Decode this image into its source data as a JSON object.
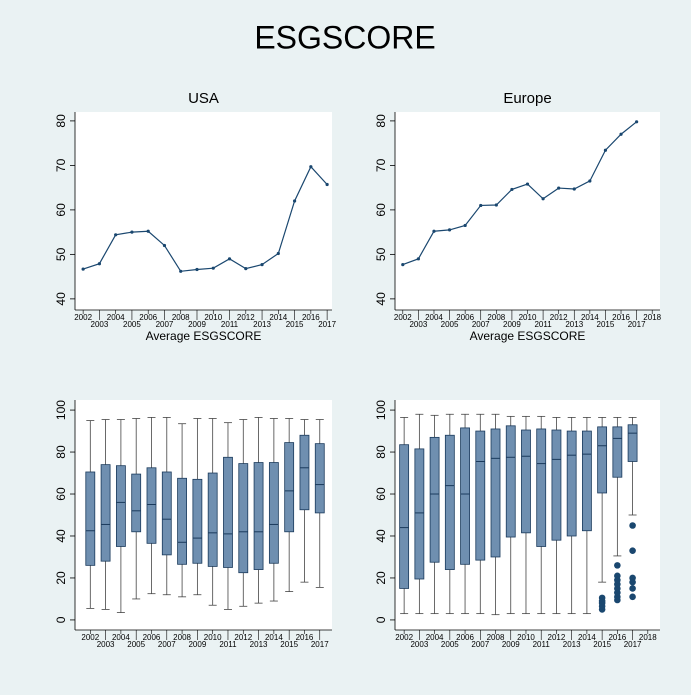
{
  "title": "ESGSCORE",
  "chart_data": [
    {
      "type": "line",
      "title": "USA",
      "xlabel": "Average ESGSCORE",
      "color": "#1a476f",
      "x": [
        2002,
        2003,
        2004,
        2005,
        2006,
        2007,
        2008,
        2009,
        2010,
        2011,
        2012,
        2013,
        2014,
        2015,
        2016,
        2017
      ],
      "values": [
        46.7,
        47.9,
        54.4,
        55.0,
        55.2,
        52.0,
        46.2,
        46.6,
        46.9,
        49.0,
        46.8,
        47.7,
        50.2,
        62.0,
        69.7,
        65.7
      ],
      "xlim": [
        2001.5,
        2017.3
      ],
      "ylim": [
        37.5,
        82
      ],
      "xticks": [
        2002,
        2003,
        2004,
        2005,
        2006,
        2007,
        2008,
        2009,
        2010,
        2011,
        2012,
        2013,
        2014,
        2015,
        2016,
        2017
      ],
      "yticks": [
        40,
        50,
        60,
        70,
        80
      ]
    },
    {
      "type": "line",
      "title": "Europe",
      "xlabel": "Average ESGSCORE",
      "color": "#1a476f",
      "x": [
        2002,
        2003,
        2004,
        2005,
        2006,
        2007,
        2008,
        2009,
        2010,
        2011,
        2012,
        2013,
        2014,
        2015,
        2016,
        2017
      ],
      "values": [
        47.7,
        49.0,
        55.2,
        55.5,
        56.5,
        61.0,
        61.1,
        64.6,
        65.8,
        62.5,
        64.9,
        64.7,
        66.5,
        73.4,
        77.0,
        79.8
      ],
      "xlim": [
        2001.5,
        2018.5
      ],
      "ylim": [
        37.5,
        82
      ],
      "xticks": [
        2002,
        2003,
        2004,
        2005,
        2006,
        2007,
        2008,
        2009,
        2010,
        2011,
        2012,
        2013,
        2014,
        2015,
        2016,
        2017,
        2018
      ],
      "yticks": [
        40,
        50,
        60,
        70,
        80
      ]
    },
    {
      "type": "box",
      "color": "#6f8fb0",
      "x": [
        2002,
        2003,
        2004,
        2005,
        2006,
        2007,
        2008,
        2009,
        2010,
        2011,
        2012,
        2013,
        2014,
        2015,
        2016,
        2017
      ],
      "whisker_low": [
        5.5,
        5,
        3.5,
        10,
        12.5,
        12,
        11,
        12,
        7,
        5,
        6.5,
        8,
        9,
        13.5,
        18,
        15.5
      ],
      "q1": [
        26,
        28,
        35,
        42,
        36.5,
        31,
        26.5,
        27,
        25.5,
        25,
        22.5,
        24,
        27,
        42,
        52.5,
        51
      ],
      "median": [
        42.5,
        45.5,
        56,
        52,
        55,
        48,
        37,
        39,
        41.5,
        41,
        42,
        42,
        45.5,
        61.5,
        72.5,
        64.5
      ],
      "q3": [
        70.5,
        74,
        73.5,
        69.5,
        72.5,
        70.5,
        67.5,
        67,
        70,
        77.5,
        74.5,
        75,
        75,
        84.5,
        88,
        84
      ],
      "whisker_high": [
        95,
        95.5,
        95.5,
        96,
        96.5,
        96.5,
        93.5,
        96,
        96,
        94,
        95.5,
        96.5,
        96,
        96,
        95.5,
        95.5
      ],
      "xlim": [
        2001,
        2017.8
      ],
      "ylim": [
        -4.8,
        104.8
      ],
      "xticks": [
        2002,
        2003,
        2004,
        2005,
        2006,
        2007,
        2008,
        2009,
        2010,
        2011,
        2012,
        2013,
        2014,
        2015,
        2016,
        2017
      ],
      "yticks": [
        0,
        20,
        40,
        60,
        80,
        100
      ]
    },
    {
      "type": "box",
      "color": "#6f8fb0",
      "x": [
        2002,
        2003,
        2004,
        2005,
        2006,
        2007,
        2008,
        2009,
        2010,
        2011,
        2012,
        2013,
        2014,
        2015,
        2016,
        2017
      ],
      "whisker_low": [
        3,
        3,
        3,
        3,
        3,
        3,
        2.5,
        3,
        3,
        3,
        3,
        3,
        3,
        18,
        30.5,
        50
      ],
      "q1": [
        15,
        19.5,
        27.5,
        24,
        26.5,
        28.5,
        30,
        39.5,
        41.5,
        35,
        38,
        40,
        42.5,
        60.5,
        68,
        75.5
      ],
      "median": [
        44,
        51,
        60,
        64,
        60,
        75.5,
        77,
        77.5,
        78,
        74.5,
        76.5,
        78.5,
        79,
        83,
        86.5,
        89
      ],
      "q3": [
        83.5,
        81.5,
        87,
        88,
        91.5,
        90,
        91,
        92.5,
        90.5,
        91,
        90.5,
        90,
        90,
        92,
        92,
        93
      ],
      "whisker_high": [
        96.5,
        98,
        97.5,
        98,
        98,
        98,
        98,
        97,
        97,
        97,
        96.5,
        96.5,
        96.5,
        96.5,
        96.5,
        96.5
      ],
      "outliers": [
        [],
        [],
        [],
        [],
        [],
        [],
        [],
        [],
        [],
        [],
        [],
        [],
        [],
        [
          5,
          6.5,
          8,
          9,
          10.5
        ],
        [
          9.5,
          11,
          13,
          15,
          17,
          19,
          21,
          26
        ],
        [
          11,
          15,
          18,
          20,
          33,
          45
        ]
      ],
      "xlim": [
        2001.4,
        2018.8
      ],
      "ylim": [
        -4.8,
        104.8
      ],
      "xticks": [
        2002,
        2003,
        2004,
        2005,
        2006,
        2007,
        2008,
        2009,
        2010,
        2011,
        2012,
        2013,
        2014,
        2015,
        2016,
        2017,
        2018
      ],
      "yticks": [
        0,
        20,
        40,
        60,
        80,
        100
      ]
    }
  ]
}
